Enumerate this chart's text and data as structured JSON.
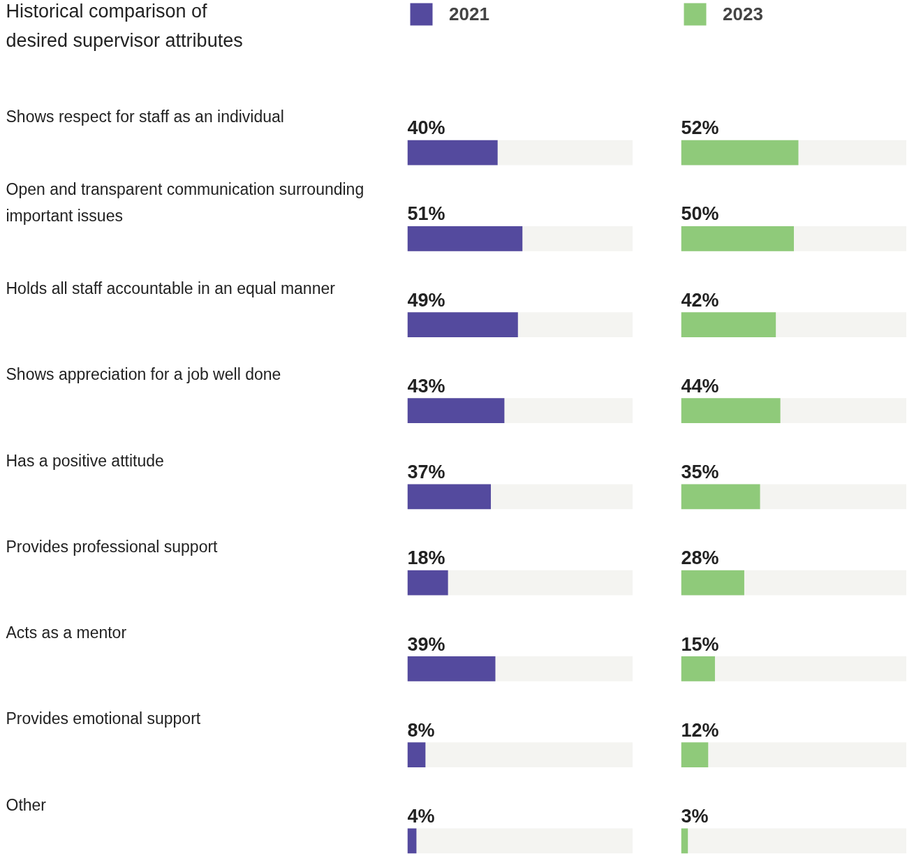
{
  "chart_data": [
    {
      "type": "bar",
      "orientation": "horizontal",
      "title": "Historical comparison of desired supervisor attributes",
      "categories": [
        "Shows respect for staff as an individual",
        "Open and transparent communication surrounding important issues",
        "Holds all staff accountable in an equal manner",
        "Shows appreciation for a job well done",
        "Has a positive attitude",
        "Provides professional support",
        "Acts as a mentor",
        "Provides emotional support",
        "Other"
      ],
      "series": [
        {
          "name": "2021",
          "color": "#544a9e",
          "values": [
            40,
            51,
            49,
            43,
            37,
            18,
            39,
            8,
            4
          ],
          "value_labels": [
            "40%",
            "51%",
            "49%",
            "43%",
            "37%",
            "18%",
            "39%",
            "8%",
            "4%"
          ]
        }
      ],
      "xlim": [
        0,
        100
      ],
      "tick_labels": "y",
      "legend": "top"
    },
    {
      "type": "bar",
      "orientation": "horizontal",
      "categories": [
        null,
        null,
        null,
        null,
        null,
        null,
        null,
        null,
        null
      ],
      "series": [
        {
          "name": "2023",
          "color": "#8fca7a",
          "values": [
            52,
            50,
            42,
            44,
            35,
            28,
            15,
            12,
            3
          ],
          "value_labels": [
            "52%",
            "50%",
            "42%",
            "44%",
            "35%",
            "28%",
            "15%",
            "12%",
            "3%"
          ]
        }
      ],
      "xlim": [
        0,
        100
      ],
      "tick_labels": false,
      "legend": "top"
    }
  ]
}
